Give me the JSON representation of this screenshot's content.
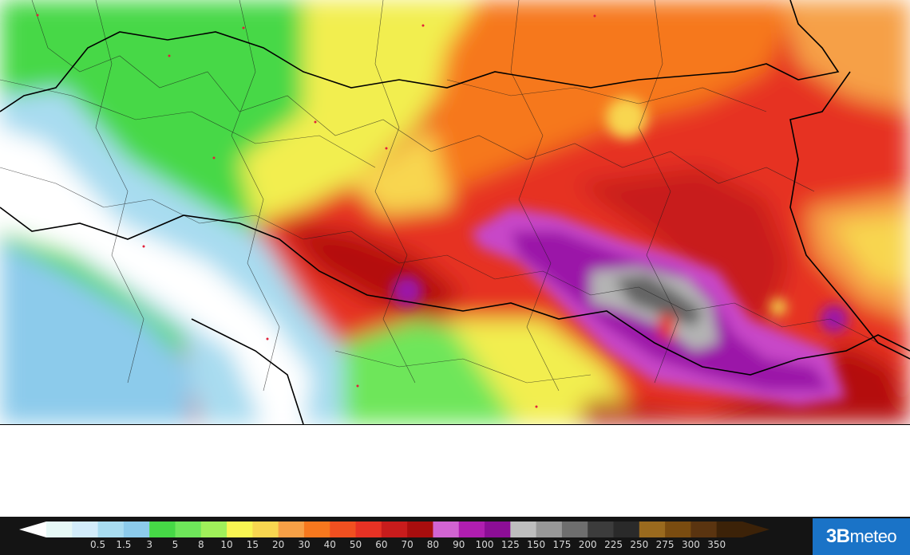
{
  "map": {
    "description_field_color": {
      "white": "#ffffff",
      "light_blue": "#a8dcf0",
      "green": "#46d846",
      "yellow": "#f2ee50",
      "orange": "#f6a046",
      "red": "#e63224",
      "dark_red": "#b40e0e",
      "purple": "#9b14a8",
      "magenta": "#c846c8",
      "grey": "#b4b4b4",
      "dark_grey": "#646464"
    }
  },
  "legend": {
    "ticks": [
      "0.5",
      "1.5",
      "3",
      "5",
      "8",
      "10",
      "15",
      "20",
      "30",
      "40",
      "50",
      "60",
      "70",
      "80",
      "90",
      "100",
      "125",
      "150",
      "175",
      "200",
      "225",
      "250",
      "275",
      "300",
      "350"
    ],
    "colors": [
      "#ffffff",
      "#e6f8f6",
      "#d2ecfa",
      "#a8dcf0",
      "#8ccbeb",
      "#46d846",
      "#6ee65a",
      "#a0f05a",
      "#f8f552",
      "#f8d650",
      "#f6a046",
      "#f6781e",
      "#f05020",
      "#e63224",
      "#c81c1c",
      "#a80e0e",
      "#d264d2",
      "#b01eb0",
      "#8c0e96",
      "#bebebe",
      "#989898",
      "#6e6e6e",
      "#3c3c3c",
      "#2a2a2a",
      "#9a6a1e",
      "#7a4c10",
      "#5a3410",
      "#3c2208"
    ]
  },
  "brand": {
    "part1": "3B",
    "part2": "meteo"
  }
}
